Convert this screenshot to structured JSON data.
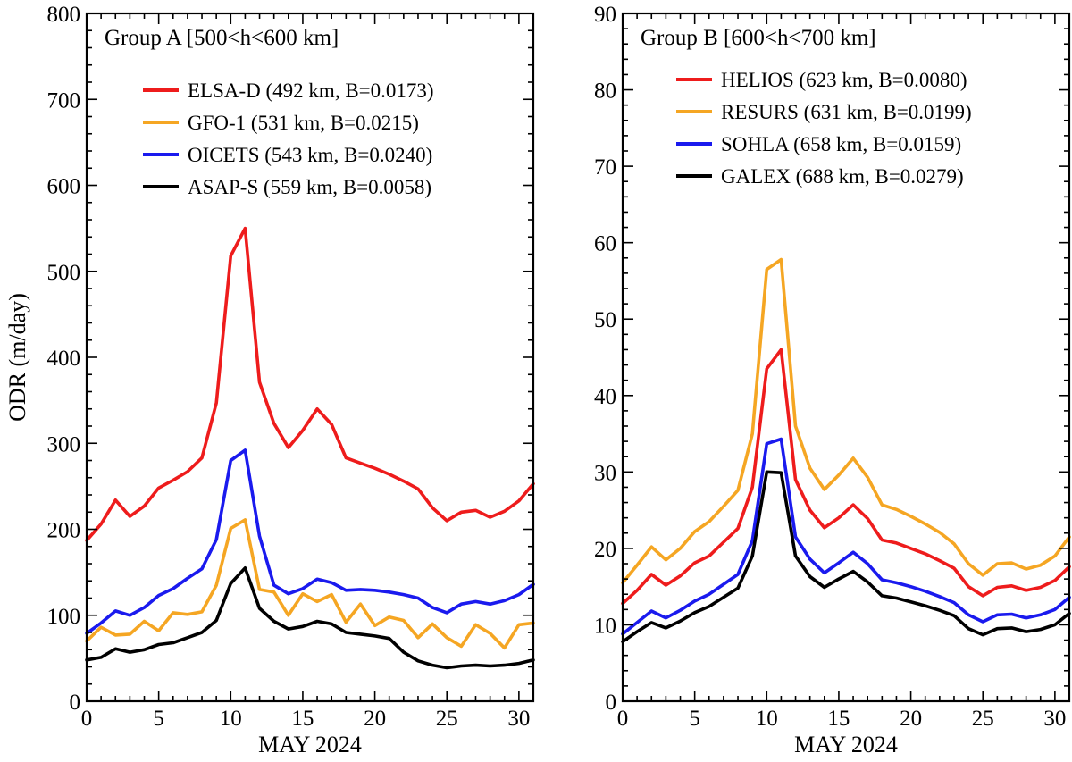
{
  "chart_data": [
    {
      "type": "line",
      "title": "Group A [500<h<600 km]",
      "xlabel": "MAY 2024",
      "ylabel": "ODR (m/day)",
      "xlim": [
        0,
        31
      ],
      "ylim": [
        0,
        800
      ],
      "xticks": [
        0,
        5,
        10,
        15,
        20,
        25,
        30
      ],
      "yticks": [
        0,
        100,
        200,
        300,
        400,
        500,
        600,
        700,
        800
      ],
      "x": [
        0,
        1,
        2,
        3,
        4,
        5,
        6,
        7,
        8,
        9,
        10,
        11,
        12,
        13,
        14,
        15,
        16,
        17,
        18,
        19,
        20,
        21,
        22,
        23,
        24,
        25,
        26,
        27,
        28,
        29,
        30,
        31
      ],
      "series": [
        {
          "name": "ELSA-D (492 km, B=0.0173)",
          "color": "#ee1c1c",
          "values": [
            187,
            206,
            234,
            215,
            227,
            248,
            257,
            267,
            283,
            347,
            518,
            550,
            371,
            323,
            295,
            315,
            340,
            322,
            283,
            277,
            271,
            264,
            256,
            247,
            225,
            210,
            220,
            222,
            214,
            221,
            233,
            253
          ]
        },
        {
          "name": "GFO-1 (531 km, B=0.0215)",
          "color": "#f5a623",
          "values": [
            70,
            86,
            77,
            78,
            93,
            82,
            103,
            101,
            104,
            135,
            201,
            211,
            130,
            127,
            100,
            125,
            116,
            124,
            92,
            113,
            88,
            98,
            94,
            74,
            90,
            74,
            64,
            89,
            79,
            62,
            89,
            91
          ]
        },
        {
          "name": "OICETS (543 km, B=0.0240)",
          "color": "#1a1aee",
          "values": [
            79,
            91,
            105,
            100,
            109,
            123,
            131,
            143,
            154,
            188,
            280,
            292,
            192,
            135,
            125,
            131,
            142,
            138,
            129,
            130,
            129,
            127,
            124,
            120,
            109,
            103,
            113,
            116,
            113,
            117,
            124,
            136
          ]
        },
        {
          "name": "ASAP-S (559 km, B=0.0058)",
          "color": "#000000",
          "values": [
            48,
            51,
            61,
            57,
            60,
            66,
            68,
            74,
            80,
            94,
            137,
            155,
            108,
            93,
            84,
            87,
            93,
            90,
            80,
            78,
            76,
            73,
            57,
            47,
            42,
            39,
            41,
            42,
            41,
            42,
            44,
            48
          ]
        }
      ]
    },
    {
      "type": "line",
      "title": "Group B [600<h<700 km]",
      "xlabel": "MAY 2024",
      "ylabel": "",
      "xlim": [
        0,
        31
      ],
      "ylim": [
        0,
        90
      ],
      "xticks": [
        0,
        5,
        10,
        15,
        20,
        25,
        30
      ],
      "yticks": [
        0,
        10,
        20,
        30,
        40,
        50,
        60,
        70,
        80,
        90
      ],
      "x": [
        0,
        1,
        2,
        3,
        4,
        5,
        6,
        7,
        8,
        9,
        10,
        11,
        12,
        13,
        14,
        15,
        16,
        17,
        18,
        19,
        20,
        21,
        22,
        23,
        24,
        25,
        26,
        27,
        28,
        29,
        30,
        31
      ],
      "series": [
        {
          "name": "HELIOS (623 km, B=0.0080)",
          "color": "#ee1c1c",
          "values": [
            12.8,
            14.5,
            16.6,
            15.2,
            16.4,
            18.1,
            19.0,
            20.8,
            22.6,
            28.0,
            43.5,
            46.0,
            29.0,
            25.0,
            22.7,
            24.0,
            25.7,
            23.9,
            21.1,
            20.7,
            20.0,
            19.3,
            18.4,
            17.4,
            15.0,
            13.8,
            14.9,
            15.1,
            14.5,
            14.9,
            15.8,
            17.6
          ]
        },
        {
          "name": "RESURS (631 km, B=0.0199)",
          "color": "#f5a623",
          "values": [
            15.5,
            17.8,
            20.2,
            18.5,
            20.0,
            22.2,
            23.5,
            25.5,
            27.6,
            35.0,
            56.5,
            57.8,
            36.0,
            30.5,
            27.7,
            29.6,
            31.8,
            29.3,
            25.7,
            25.1,
            24.2,
            23.2,
            22.1,
            20.6,
            18.0,
            16.5,
            18.0,
            18.1,
            17.3,
            17.8,
            19.0,
            21.5
          ]
        },
        {
          "name": "SOHLA (658 km, B=0.0159)",
          "color": "#1a1aee",
          "values": [
            8.8,
            10.3,
            11.8,
            10.9,
            11.9,
            13.1,
            14.0,
            15.3,
            16.6,
            21.0,
            33.7,
            34.3,
            21.5,
            18.6,
            16.8,
            18.1,
            19.5,
            18.0,
            15.9,
            15.5,
            15.0,
            14.4,
            13.7,
            12.9,
            11.3,
            10.4,
            11.3,
            11.4,
            10.9,
            11.3,
            12.0,
            13.6
          ]
        },
        {
          "name": "GALEX (688 km, B=0.0279)",
          "color": "#000000",
          "values": [
            7.8,
            9.1,
            10.3,
            9.6,
            10.5,
            11.6,
            12.4,
            13.6,
            14.8,
            19.0,
            30.0,
            29.9,
            19.0,
            16.3,
            14.9,
            16.0,
            17.0,
            15.6,
            13.8,
            13.5,
            13.0,
            12.5,
            11.9,
            11.2,
            9.5,
            8.7,
            9.5,
            9.6,
            9.1,
            9.4,
            10.0,
            11.5
          ]
        }
      ]
    }
  ]
}
